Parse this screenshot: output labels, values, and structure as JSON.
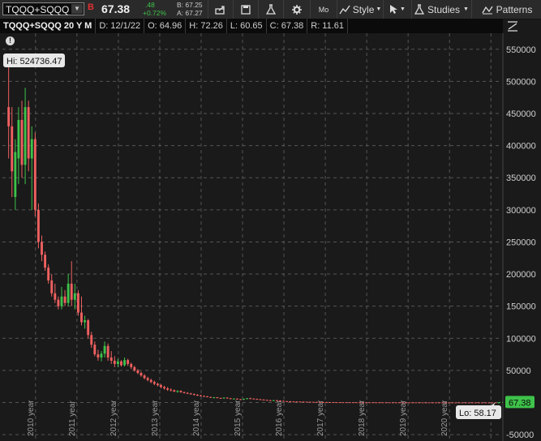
{
  "toolbar": {
    "symbol": "TQQQ+SQQQ",
    "badge": "B",
    "last": "67.38",
    "change": ".48",
    "change_pct": "+0.72%",
    "bid": "B: 67.25",
    "ask": "A: 67.27",
    "period_label": "Mo",
    "style_label": "Style",
    "studies_label": "Studies",
    "patterns_label": "Patterns",
    "icons": [
      "share-icon",
      "save-icon",
      "flask-icon",
      "gear-icon",
      "style-icon",
      "cursor-icon",
      "studies-icon",
      "patterns-icon"
    ]
  },
  "infobar": {
    "title": "TQQQ+SQQQ 20 Y M",
    "date": "D: 12/1/22",
    "open": "O: 64.96",
    "high": "H: 72.26",
    "low": "L: 60.65",
    "close": "C: 67.38",
    "range": "R: 11.61"
  },
  "chart_data": {
    "type": "candlestick",
    "y_ticks": [
      -50000,
      0,
      50000,
      100000,
      150000,
      200000,
      250000,
      300000,
      350000,
      400000,
      450000,
      500000,
      550000
    ],
    "y_tick_labels": [
      "-50000",
      "",
      "50000",
      "100000",
      "150000",
      "200000",
      "250000",
      "300000",
      "350000",
      "400000",
      "450000",
      "500000",
      "550000"
    ],
    "ylim": [
      -60000,
      575000
    ],
    "x_ticks": [
      2010,
      2011,
      2012,
      2013,
      2014,
      2015,
      2016,
      2017,
      2018,
      2019,
      2020,
      2021
    ],
    "x_tick_labels": [
      "2010 year",
      "2011 year",
      "2012 year",
      "2013 year",
      "2014 year",
      "2015 year",
      "2016 year",
      "2017 year",
      "2018 year",
      "2019 year",
      "2020 year",
      ""
    ],
    "xlim": [
      2009.2,
      2021.25
    ],
    "hi_label": "Hi: 524736.47",
    "hi_value": 524736.47,
    "lo_label": "Lo: 58.17",
    "lo_value": 58.17,
    "last_label": "67.38",
    "last_value": 67.38,
    "colors": {
      "up": "#3ec24a",
      "down": "#f06060",
      "grid": "#555555",
      "background": "#1a1a1a",
      "last_badge": "#3ec24a"
    },
    "candles": [
      {
        "t": 2009.35,
        "o": 460000,
        "h": 524736,
        "l": 380000,
        "c": 430000
      },
      {
        "t": 2009.43,
        "o": 430000,
        "h": 460000,
        "l": 320000,
        "c": 360000
      },
      {
        "t": 2009.51,
        "o": 320000,
        "h": 410000,
        "l": 300000,
        "c": 390000
      },
      {
        "t": 2009.59,
        "o": 380000,
        "h": 460000,
        "l": 340000,
        "c": 440000
      },
      {
        "t": 2009.67,
        "o": 440000,
        "h": 470000,
        "l": 350000,
        "c": 370000
      },
      {
        "t": 2009.75,
        "o": 370000,
        "h": 490000,
        "l": 340000,
        "c": 460000
      },
      {
        "t": 2009.83,
        "o": 460000,
        "h": 470000,
        "l": 360000,
        "c": 380000
      },
      {
        "t": 2009.91,
        "o": 380000,
        "h": 430000,
        "l": 300000,
        "c": 410000
      },
      {
        "t": 2009.99,
        "o": 410000,
        "h": 420000,
        "l": 290000,
        "c": 300000
      },
      {
        "t": 2010.07,
        "o": 300000,
        "h": 310000,
        "l": 240000,
        "c": 250000
      },
      {
        "t": 2010.15,
        "o": 250000,
        "h": 260000,
        "l": 220000,
        "c": 230000
      },
      {
        "t": 2010.23,
        "o": 230000,
        "h": 235000,
        "l": 205000,
        "c": 210000
      },
      {
        "t": 2010.31,
        "o": 210000,
        "h": 215000,
        "l": 185000,
        "c": 190000
      },
      {
        "t": 2010.39,
        "o": 190000,
        "h": 200000,
        "l": 165000,
        "c": 170000
      },
      {
        "t": 2010.47,
        "o": 170000,
        "h": 185000,
        "l": 155000,
        "c": 160000
      },
      {
        "t": 2010.55,
        "o": 160000,
        "h": 165000,
        "l": 145000,
        "c": 150000
      },
      {
        "t": 2010.63,
        "o": 150000,
        "h": 180000,
        "l": 145000,
        "c": 165000
      },
      {
        "t": 2010.71,
        "o": 165000,
        "h": 175000,
        "l": 150000,
        "c": 155000
      },
      {
        "t": 2010.79,
        "o": 155000,
        "h": 200000,
        "l": 150000,
        "c": 185000
      },
      {
        "t": 2010.87,
        "o": 185000,
        "h": 220000,
        "l": 150000,
        "c": 160000
      },
      {
        "t": 2010.95,
        "o": 160000,
        "h": 185000,
        "l": 145000,
        "c": 170000
      },
      {
        "t": 2011.03,
        "o": 170000,
        "h": 175000,
        "l": 135000,
        "c": 140000
      },
      {
        "t": 2011.11,
        "o": 140000,
        "h": 165000,
        "l": 120000,
        "c": 125000
      },
      {
        "t": 2011.19,
        "o": 125000,
        "h": 135000,
        "l": 115000,
        "c": 128000
      },
      {
        "t": 2011.27,
        "o": 128000,
        "h": 130000,
        "l": 100000,
        "c": 105000
      },
      {
        "t": 2011.35,
        "o": 105000,
        "h": 110000,
        "l": 85000,
        "c": 90000
      },
      {
        "t": 2011.43,
        "o": 90000,
        "h": 95000,
        "l": 72000,
        "c": 75000
      },
      {
        "t": 2011.51,
        "o": 75000,
        "h": 82000,
        "l": 65000,
        "c": 70000
      },
      {
        "t": 2011.59,
        "o": 70000,
        "h": 80000,
        "l": 64000,
        "c": 76000
      },
      {
        "t": 2011.67,
        "o": 76000,
        "h": 95000,
        "l": 70000,
        "c": 88000
      },
      {
        "t": 2011.75,
        "o": 88000,
        "h": 92000,
        "l": 65000,
        "c": 70000
      },
      {
        "t": 2011.83,
        "o": 70000,
        "h": 80000,
        "l": 60000,
        "c": 65000
      },
      {
        "t": 2011.91,
        "o": 65000,
        "h": 72000,
        "l": 55000,
        "c": 60000
      },
      {
        "t": 2011.99,
        "o": 60000,
        "h": 68000,
        "l": 55000,
        "c": 64000
      },
      {
        "t": 2012.07,
        "o": 64000,
        "h": 66000,
        "l": 56000,
        "c": 58000
      },
      {
        "t": 2012.15,
        "o": 58000,
        "h": 70000,
        "l": 56000,
        "c": 66000
      },
      {
        "t": 2012.23,
        "o": 66000,
        "h": 68000,
        "l": 57000,
        "c": 60000
      },
      {
        "t": 2012.31,
        "o": 60000,
        "h": 62000,
        "l": 52000,
        "c": 55000
      },
      {
        "t": 2012.39,
        "o": 55000,
        "h": 57000,
        "l": 48000,
        "c": 50000
      },
      {
        "t": 2012.47,
        "o": 50000,
        "h": 52000,
        "l": 44000,
        "c": 46000
      },
      {
        "t": 2012.55,
        "o": 46000,
        "h": 48000,
        "l": 40000,
        "c": 42000
      },
      {
        "t": 2012.63,
        "o": 42000,
        "h": 44000,
        "l": 36000,
        "c": 38000
      },
      {
        "t": 2012.71,
        "o": 38000,
        "h": 40000,
        "l": 33000,
        "c": 35000
      },
      {
        "t": 2012.79,
        "o": 35000,
        "h": 37000,
        "l": 30000,
        "c": 32000
      },
      {
        "t": 2012.87,
        "o": 32000,
        "h": 34000,
        "l": 27000,
        "c": 29000
      },
      {
        "t": 2012.95,
        "o": 29000,
        "h": 31000,
        "l": 25000,
        "c": 27000
      },
      {
        "t": 2013.03,
        "o": 27000,
        "h": 29000,
        "l": 22000,
        "c": 24000
      },
      {
        "t": 2013.11,
        "o": 24000,
        "h": 26000,
        "l": 20000,
        "c": 22000
      },
      {
        "t": 2013.19,
        "o": 22000,
        "h": 24000,
        "l": 18000,
        "c": 20000
      },
      {
        "t": 2013.27,
        "o": 20000,
        "h": 22000,
        "l": 17000,
        "c": 19000
      },
      {
        "t": 2013.35,
        "o": 19000,
        "h": 20000,
        "l": 16000,
        "c": 17000
      },
      {
        "t": 2013.43,
        "o": 17000,
        "h": 19000,
        "l": 15000,
        "c": 18000
      },
      {
        "t": 2013.51,
        "o": 18000,
        "h": 19000,
        "l": 15000,
        "c": 16000
      },
      {
        "t": 2013.59,
        "o": 16000,
        "h": 17000,
        "l": 14000,
        "c": 15000
      },
      {
        "t": 2013.67,
        "o": 15000,
        "h": 16000,
        "l": 13000,
        "c": 14000
      },
      {
        "t": 2013.75,
        "o": 14000,
        "h": 15000,
        "l": 12000,
        "c": 13000
      },
      {
        "t": 2013.83,
        "o": 13000,
        "h": 14000,
        "l": 11000,
        "c": 12000
      },
      {
        "t": 2013.91,
        "o": 12000,
        "h": 13000,
        "l": 10000,
        "c": 11000
      },
      {
        "t": 2013.99,
        "o": 11000,
        "h": 12000,
        "l": 9500,
        "c": 10000
      },
      {
        "t": 2014.07,
        "o": 10000,
        "h": 11000,
        "l": 9000,
        "c": 9500
      },
      {
        "t": 2014.15,
        "o": 9500,
        "h": 10000,
        "l": 8000,
        "c": 8500
      },
      {
        "t": 2014.23,
        "o": 8500,
        "h": 9000,
        "l": 7000,
        "c": 7500
      },
      {
        "t": 2014.31,
        "o": 7500,
        "h": 8500,
        "l": 6500,
        "c": 8000
      },
      {
        "t": 2014.39,
        "o": 8000,
        "h": 8500,
        "l": 6500,
        "c": 7000
      },
      {
        "t": 2014.47,
        "o": 7000,
        "h": 7500,
        "l": 6000,
        "c": 6500
      },
      {
        "t": 2014.55,
        "o": 6500,
        "h": 8000,
        "l": 6000,
        "c": 7500
      },
      {
        "t": 2014.63,
        "o": 7500,
        "h": 8000,
        "l": 6000,
        "c": 6500
      },
      {
        "t": 2014.71,
        "o": 6500,
        "h": 7000,
        "l": 5000,
        "c": 5500
      },
      {
        "t": 2014.79,
        "o": 5500,
        "h": 6500,
        "l": 5000,
        "c": 6000
      },
      {
        "t": 2014.87,
        "o": 6000,
        "h": 6500,
        "l": 4500,
        "c": 5000
      },
      {
        "t": 2014.95,
        "o": 5000,
        "h": 5500,
        "l": 4000,
        "c": 4500
      },
      {
        "t": 2015.03,
        "o": 4500,
        "h": 6000,
        "l": 4000,
        "c": 5500
      },
      {
        "t": 2015.11,
        "o": 5500,
        "h": 7000,
        "l": 5000,
        "c": 6500
      },
      {
        "t": 2015.19,
        "o": 6500,
        "h": 7500,
        "l": 5500,
        "c": 6000
      },
      {
        "t": 2015.27,
        "o": 6000,
        "h": 6500,
        "l": 5000,
        "c": 5500
      },
      {
        "t": 2015.35,
        "o": 5500,
        "h": 6000,
        "l": 4500,
        "c": 5000
      },
      {
        "t": 2015.43,
        "o": 5000,
        "h": 5500,
        "l": 4000,
        "c": 4500
      },
      {
        "t": 2015.51,
        "o": 4500,
        "h": 5000,
        "l": 3500,
        "c": 4000
      },
      {
        "t": 2015.59,
        "o": 4000,
        "h": 4500,
        "l": 3000,
        "c": 3500
      },
      {
        "t": 2015.67,
        "o": 3500,
        "h": 4000,
        "l": 2500,
        "c": 3000
      },
      {
        "t": 2015.75,
        "o": 3000,
        "h": 4000,
        "l": 2500,
        "c": 3500
      },
      {
        "t": 2015.83,
        "o": 3500,
        "h": 4000,
        "l": 2500,
        "c": 3000
      },
      {
        "t": 2015.91,
        "o": 3000,
        "h": 3500,
        "l": 2000,
        "c": 2500
      },
      {
        "t": 2015.99,
        "o": 2500,
        "h": 3000,
        "l": 1800,
        "c": 2000
      },
      {
        "t": 2016.07,
        "o": 2000,
        "h": 2400,
        "l": 1500,
        "c": 1800
      },
      {
        "t": 2016.15,
        "o": 1800,
        "h": 2200,
        "l": 1400,
        "c": 1600
      },
      {
        "t": 2016.23,
        "o": 1600,
        "h": 2000,
        "l": 1300,
        "c": 1500
      },
      {
        "t": 2016.31,
        "o": 1500,
        "h": 1800,
        "l": 1200,
        "c": 1400
      },
      {
        "t": 2016.39,
        "o": 1400,
        "h": 1700,
        "l": 1100,
        "c": 1300
      },
      {
        "t": 2016.47,
        "o": 1300,
        "h": 1600,
        "l": 1000,
        "c": 1200
      },
      {
        "t": 2016.55,
        "o": 1200,
        "h": 1400,
        "l": 900,
        "c": 1100
      },
      {
        "t": 2016.63,
        "o": 1100,
        "h": 1300,
        "l": 800,
        "c": 1000
      },
      {
        "t": 2016.71,
        "o": 1000,
        "h": 1200,
        "l": 800,
        "c": 900
      },
      {
        "t": 2016.79,
        "o": 900,
        "h": 1100,
        "l": 700,
        "c": 800
      },
      {
        "t": 2016.87,
        "o": 800,
        "h": 1000,
        "l": 600,
        "c": 700
      },
      {
        "t": 2016.95,
        "o": 700,
        "h": 900,
        "l": 550,
        "c": 650
      },
      {
        "t": 2017.03,
        "o": 650,
        "h": 800,
        "l": 500,
        "c": 600
      },
      {
        "t": 2017.11,
        "o": 600,
        "h": 700,
        "l": 450,
        "c": 550
      },
      {
        "t": 2017.19,
        "o": 550,
        "h": 650,
        "l": 420,
        "c": 500
      },
      {
        "t": 2017.27,
        "o": 500,
        "h": 600,
        "l": 400,
        "c": 460
      },
      {
        "t": 2017.35,
        "o": 460,
        "h": 550,
        "l": 380,
        "c": 430
      },
      {
        "t": 2017.43,
        "o": 430,
        "h": 500,
        "l": 360,
        "c": 400
      },
      {
        "t": 2017.51,
        "o": 400,
        "h": 480,
        "l": 340,
        "c": 380
      },
      {
        "t": 2017.59,
        "o": 380,
        "h": 450,
        "l": 320,
        "c": 360
      },
      {
        "t": 2017.67,
        "o": 360,
        "h": 430,
        "l": 300,
        "c": 340
      },
      {
        "t": 2017.75,
        "o": 340,
        "h": 400,
        "l": 280,
        "c": 320
      },
      {
        "t": 2017.83,
        "o": 320,
        "h": 380,
        "l": 270,
        "c": 300
      },
      {
        "t": 2017.91,
        "o": 300,
        "h": 360,
        "l": 260,
        "c": 290
      },
      {
        "t": 2017.99,
        "o": 290,
        "h": 340,
        "l": 250,
        "c": 280
      },
      {
        "t": 2018.07,
        "o": 280,
        "h": 330,
        "l": 240,
        "c": 270
      },
      {
        "t": 2018.15,
        "o": 270,
        "h": 320,
        "l": 230,
        "c": 260
      },
      {
        "t": 2018.23,
        "o": 260,
        "h": 310,
        "l": 220,
        "c": 250
      },
      {
        "t": 2018.31,
        "o": 250,
        "h": 300,
        "l": 210,
        "c": 240
      },
      {
        "t": 2018.39,
        "o": 240,
        "h": 290,
        "l": 200,
        "c": 230
      },
      {
        "t": 2018.47,
        "o": 230,
        "h": 280,
        "l": 195,
        "c": 220
      },
      {
        "t": 2018.55,
        "o": 220,
        "h": 270,
        "l": 190,
        "c": 210
      },
      {
        "t": 2018.63,
        "o": 210,
        "h": 260,
        "l": 185,
        "c": 205
      },
      {
        "t": 2018.71,
        "o": 205,
        "h": 250,
        "l": 180,
        "c": 200
      },
      {
        "t": 2018.79,
        "o": 200,
        "h": 240,
        "l": 170,
        "c": 190
      },
      {
        "t": 2018.87,
        "o": 190,
        "h": 230,
        "l": 160,
        "c": 180
      },
      {
        "t": 2018.95,
        "o": 180,
        "h": 220,
        "l": 150,
        "c": 170
      },
      {
        "t": 2019.03,
        "o": 170,
        "h": 210,
        "l": 145,
        "c": 165
      },
      {
        "t": 2019.11,
        "o": 165,
        "h": 200,
        "l": 140,
        "c": 160
      },
      {
        "t": 2019.19,
        "o": 160,
        "h": 190,
        "l": 135,
        "c": 150
      },
      {
        "t": 2019.27,
        "o": 150,
        "h": 180,
        "l": 130,
        "c": 145
      },
      {
        "t": 2019.35,
        "o": 145,
        "h": 170,
        "l": 125,
        "c": 140
      },
      {
        "t": 2019.43,
        "o": 140,
        "h": 165,
        "l": 120,
        "c": 135
      },
      {
        "t": 2019.51,
        "o": 135,
        "h": 160,
        "l": 115,
        "c": 130
      },
      {
        "t": 2019.59,
        "o": 130,
        "h": 155,
        "l": 110,
        "c": 125
      },
      {
        "t": 2019.67,
        "o": 125,
        "h": 150,
        "l": 105,
        "c": 120
      },
      {
        "t": 2019.75,
        "o": 120,
        "h": 145,
        "l": 100,
        "c": 115
      },
      {
        "t": 2019.83,
        "o": 115,
        "h": 140,
        "l": 98,
        "c": 110
      },
      {
        "t": 2019.91,
        "o": 110,
        "h": 135,
        "l": 95,
        "c": 105
      },
      {
        "t": 2019.99,
        "o": 105,
        "h": 130,
        "l": 92,
        "c": 100
      },
      {
        "t": 2020.07,
        "o": 100,
        "h": 125,
        "l": 88,
        "c": 98
      },
      {
        "t": 2020.15,
        "o": 98,
        "h": 120,
        "l": 85,
        "c": 95
      },
      {
        "t": 2020.23,
        "o": 95,
        "h": 118,
        "l": 82,
        "c": 92
      },
      {
        "t": 2020.31,
        "o": 92,
        "h": 115,
        "l": 80,
        "c": 90
      },
      {
        "t": 2020.39,
        "o": 90,
        "h": 112,
        "l": 78,
        "c": 88
      },
      {
        "t": 2020.47,
        "o": 88,
        "h": 110,
        "l": 76,
        "c": 86
      },
      {
        "t": 2020.55,
        "o": 86,
        "h": 108,
        "l": 74,
        "c": 84
      },
      {
        "t": 2020.63,
        "o": 84,
        "h": 105,
        "l": 72,
        "c": 82
      },
      {
        "t": 2020.71,
        "o": 82,
        "h": 100,
        "l": 70,
        "c": 80
      },
      {
        "t": 2020.79,
        "o": 80,
        "h": 96,
        "l": 68,
        "c": 78
      },
      {
        "t": 2020.87,
        "o": 78,
        "h": 92,
        "l": 65,
        "c": 75
      },
      {
        "t": 2020.95,
        "o": 75,
        "h": 88,
        "l": 62,
        "c": 72
      },
      {
        "t": 2021.03,
        "o": 72,
        "h": 85,
        "l": 60,
        "c": 70
      },
      {
        "t": 2021.11,
        "o": 70,
        "h": 80,
        "l": 58.17,
        "c": 65
      },
      {
        "t": 2021.19,
        "o": 64.96,
        "h": 72.26,
        "l": 60.65,
        "c": 67.38
      }
    ]
  }
}
